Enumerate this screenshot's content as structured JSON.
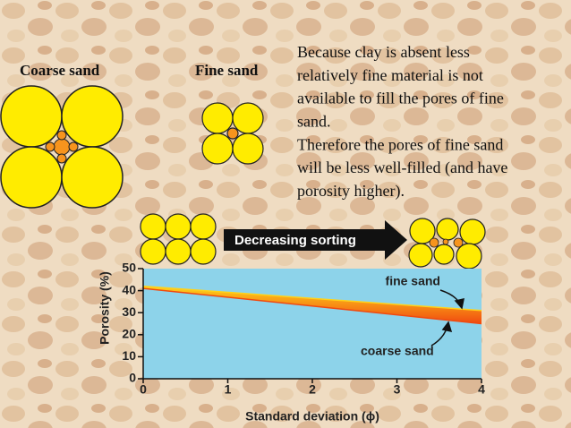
{
  "slide": {
    "left_label": "Coarse sand",
    "right_label": "Fine sand",
    "text_lines": [
      "Because clay is absent less",
      "relatively fine material is not",
      "available to fill the pores of fine",
      "sand.",
      "Therefore the pores of fine sand",
      "will be less well-filled (and have",
      "porosity higher)."
    ],
    "arrow_label": "Decreasing sorting"
  },
  "chart_data": {
    "type": "line",
    "xlabel": "Standard deviation (ϕ)",
    "ylabel": "Porosity (%)",
    "x": [
      0,
      4
    ],
    "series": [
      {
        "name": "fine sand",
        "color": "#ffd21a",
        "values": [
          42,
          31
        ]
      },
      {
        "name": "coarse sand",
        "color": "#f04a10",
        "values": [
          41,
          25
        ]
      }
    ],
    "xlim": [
      0,
      4
    ],
    "xticks": [
      0,
      1,
      2,
      3,
      4
    ],
    "ylim": [
      0,
      50
    ],
    "yticks": [
      0,
      10,
      20,
      30,
      40,
      50
    ],
    "plot_color": "#8dd3ea"
  }
}
